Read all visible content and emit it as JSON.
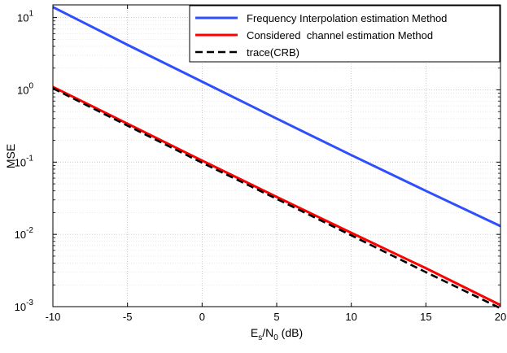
{
  "chart_data": {
    "type": "line",
    "title": "",
    "xlabel_main": "E",
    "xlabel_sub1": "s",
    "xlabel_mid": "/N",
    "xlabel_sub2": "0",
    "xlabel_unit": " (dB)",
    "ylabel": "MSE",
    "xlim": [
      -10,
      20
    ],
    "ylim": [
      0.001,
      15
    ],
    "yscale": "log",
    "grid": true,
    "legend_position": "top-right",
    "x_ticks": [
      -10,
      -5,
      0,
      5,
      10,
      15,
      20
    ],
    "x_tick_labels": [
      "-10",
      "-5",
      "0",
      "5",
      "10",
      "15",
      "20"
    ],
    "y_ticks": [
      {
        "value": 10,
        "base": "10",
        "exp": "1"
      },
      {
        "value": 1,
        "base": "10",
        "exp": "0"
      },
      {
        "value": 0.1,
        "base": "10",
        "exp": "-1"
      },
      {
        "value": 0.01,
        "base": "10",
        "exp": "-2"
      },
      {
        "value": 0.001,
        "base": "10",
        "exp": "-3"
      }
    ],
    "x": [
      -10,
      -5,
      0,
      5,
      10,
      15,
      20
    ],
    "series": [
      {
        "name": "Frequency Interpolation estimation Method",
        "color": "#2f4fff",
        "dash": "solid",
        "values": [
          14,
          4.2,
          1.3,
          0.4,
          0.125,
          0.04,
          0.013
        ]
      },
      {
        "name": "Considered  channel estimation Method",
        "color": "#ff0000",
        "dash": "solid",
        "values": [
          1.1,
          0.34,
          0.105,
          0.033,
          0.0105,
          0.0034,
          0.00105
        ]
      },
      {
        "name": "trace(CRB)",
        "color": "#000000",
        "dash": "dashed",
        "values": [
          1.05,
          0.32,
          0.098,
          0.031,
          0.0097,
          0.003,
          0.00095
        ]
      }
    ]
  }
}
